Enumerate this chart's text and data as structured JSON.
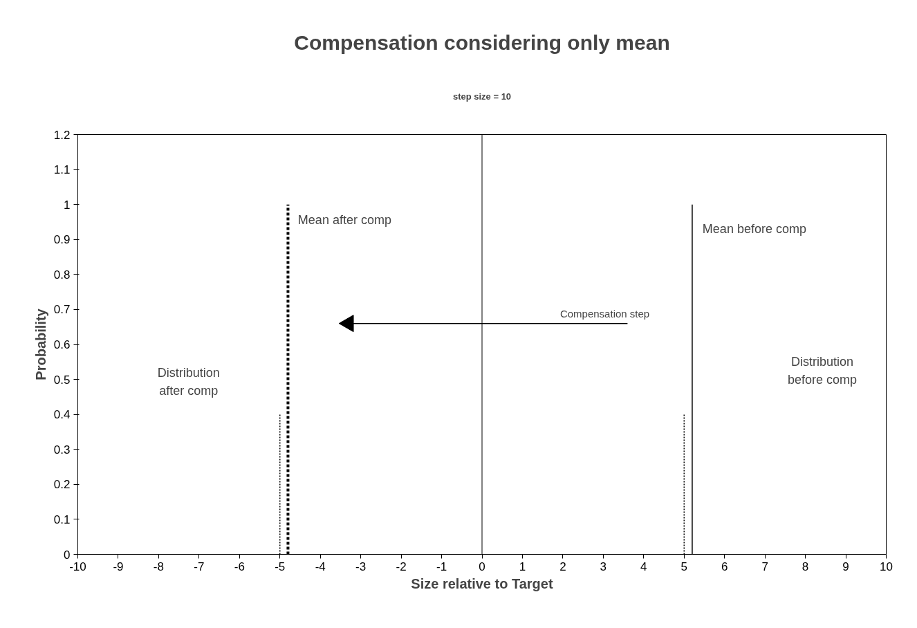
{
  "chart_data": {
    "type": "line",
    "title": "Compensation considering only mean",
    "subtitle": "step size = 10",
    "xlabel": "Size relative to Target",
    "ylabel": "Probability",
    "series": [
      {
        "color": "#000000",
        "line_style": "dashed",
        "x": [
          -4.8,
          -4.8
        ],
        "values": [
          0,
          1
        ]
      },
      {
        "color": "#000000",
        "line_style": "solid",
        "x": [
          5.2,
          5.2
        ],
        "values": [
          0,
          1
        ]
      },
      {
        "color": "#000000",
        "line_style": "dotted",
        "x": [
          -5,
          -5
        ],
        "values": [
          0,
          0.4
        ]
      },
      {
        "color": "#000000",
        "line_style": "dotted",
        "x": [
          5,
          5
        ],
        "values": [
          0,
          0.4
        ]
      },
      {
        "color": "#000000",
        "line_style": "solid",
        "marker": "triangle",
        "x": [
          3.6,
          -3.3
        ],
        "values": [
          0.66,
          0.66
        ]
      }
    ],
    "annotations": [
      "Mean after comp",
      "Mean before comp",
      "Distribution\nafter comp",
      "Distribution\nbefore comp",
      "Compensation step"
    ],
    "ref_lines": [
      {
        "axis": "x",
        "value": 0,
        "color": "#000000"
      }
    ],
    "xlim": [
      -10,
      10
    ],
    "ylim": [
      0,
      1.2
    ],
    "xticks": [
      -10,
      -9,
      -8,
      -7,
      -6,
      -5,
      -4,
      -3,
      -2,
      -1,
      0,
      1,
      2,
      3,
      4,
      5,
      6,
      7,
      8,
      9,
      10
    ],
    "yticks": [
      0,
      0.1,
      0.2,
      0.3,
      0.4,
      0.5,
      0.6,
      0.7,
      0.8,
      0.9,
      1,
      1.1,
      1.2
    ],
    "grid": false
  }
}
